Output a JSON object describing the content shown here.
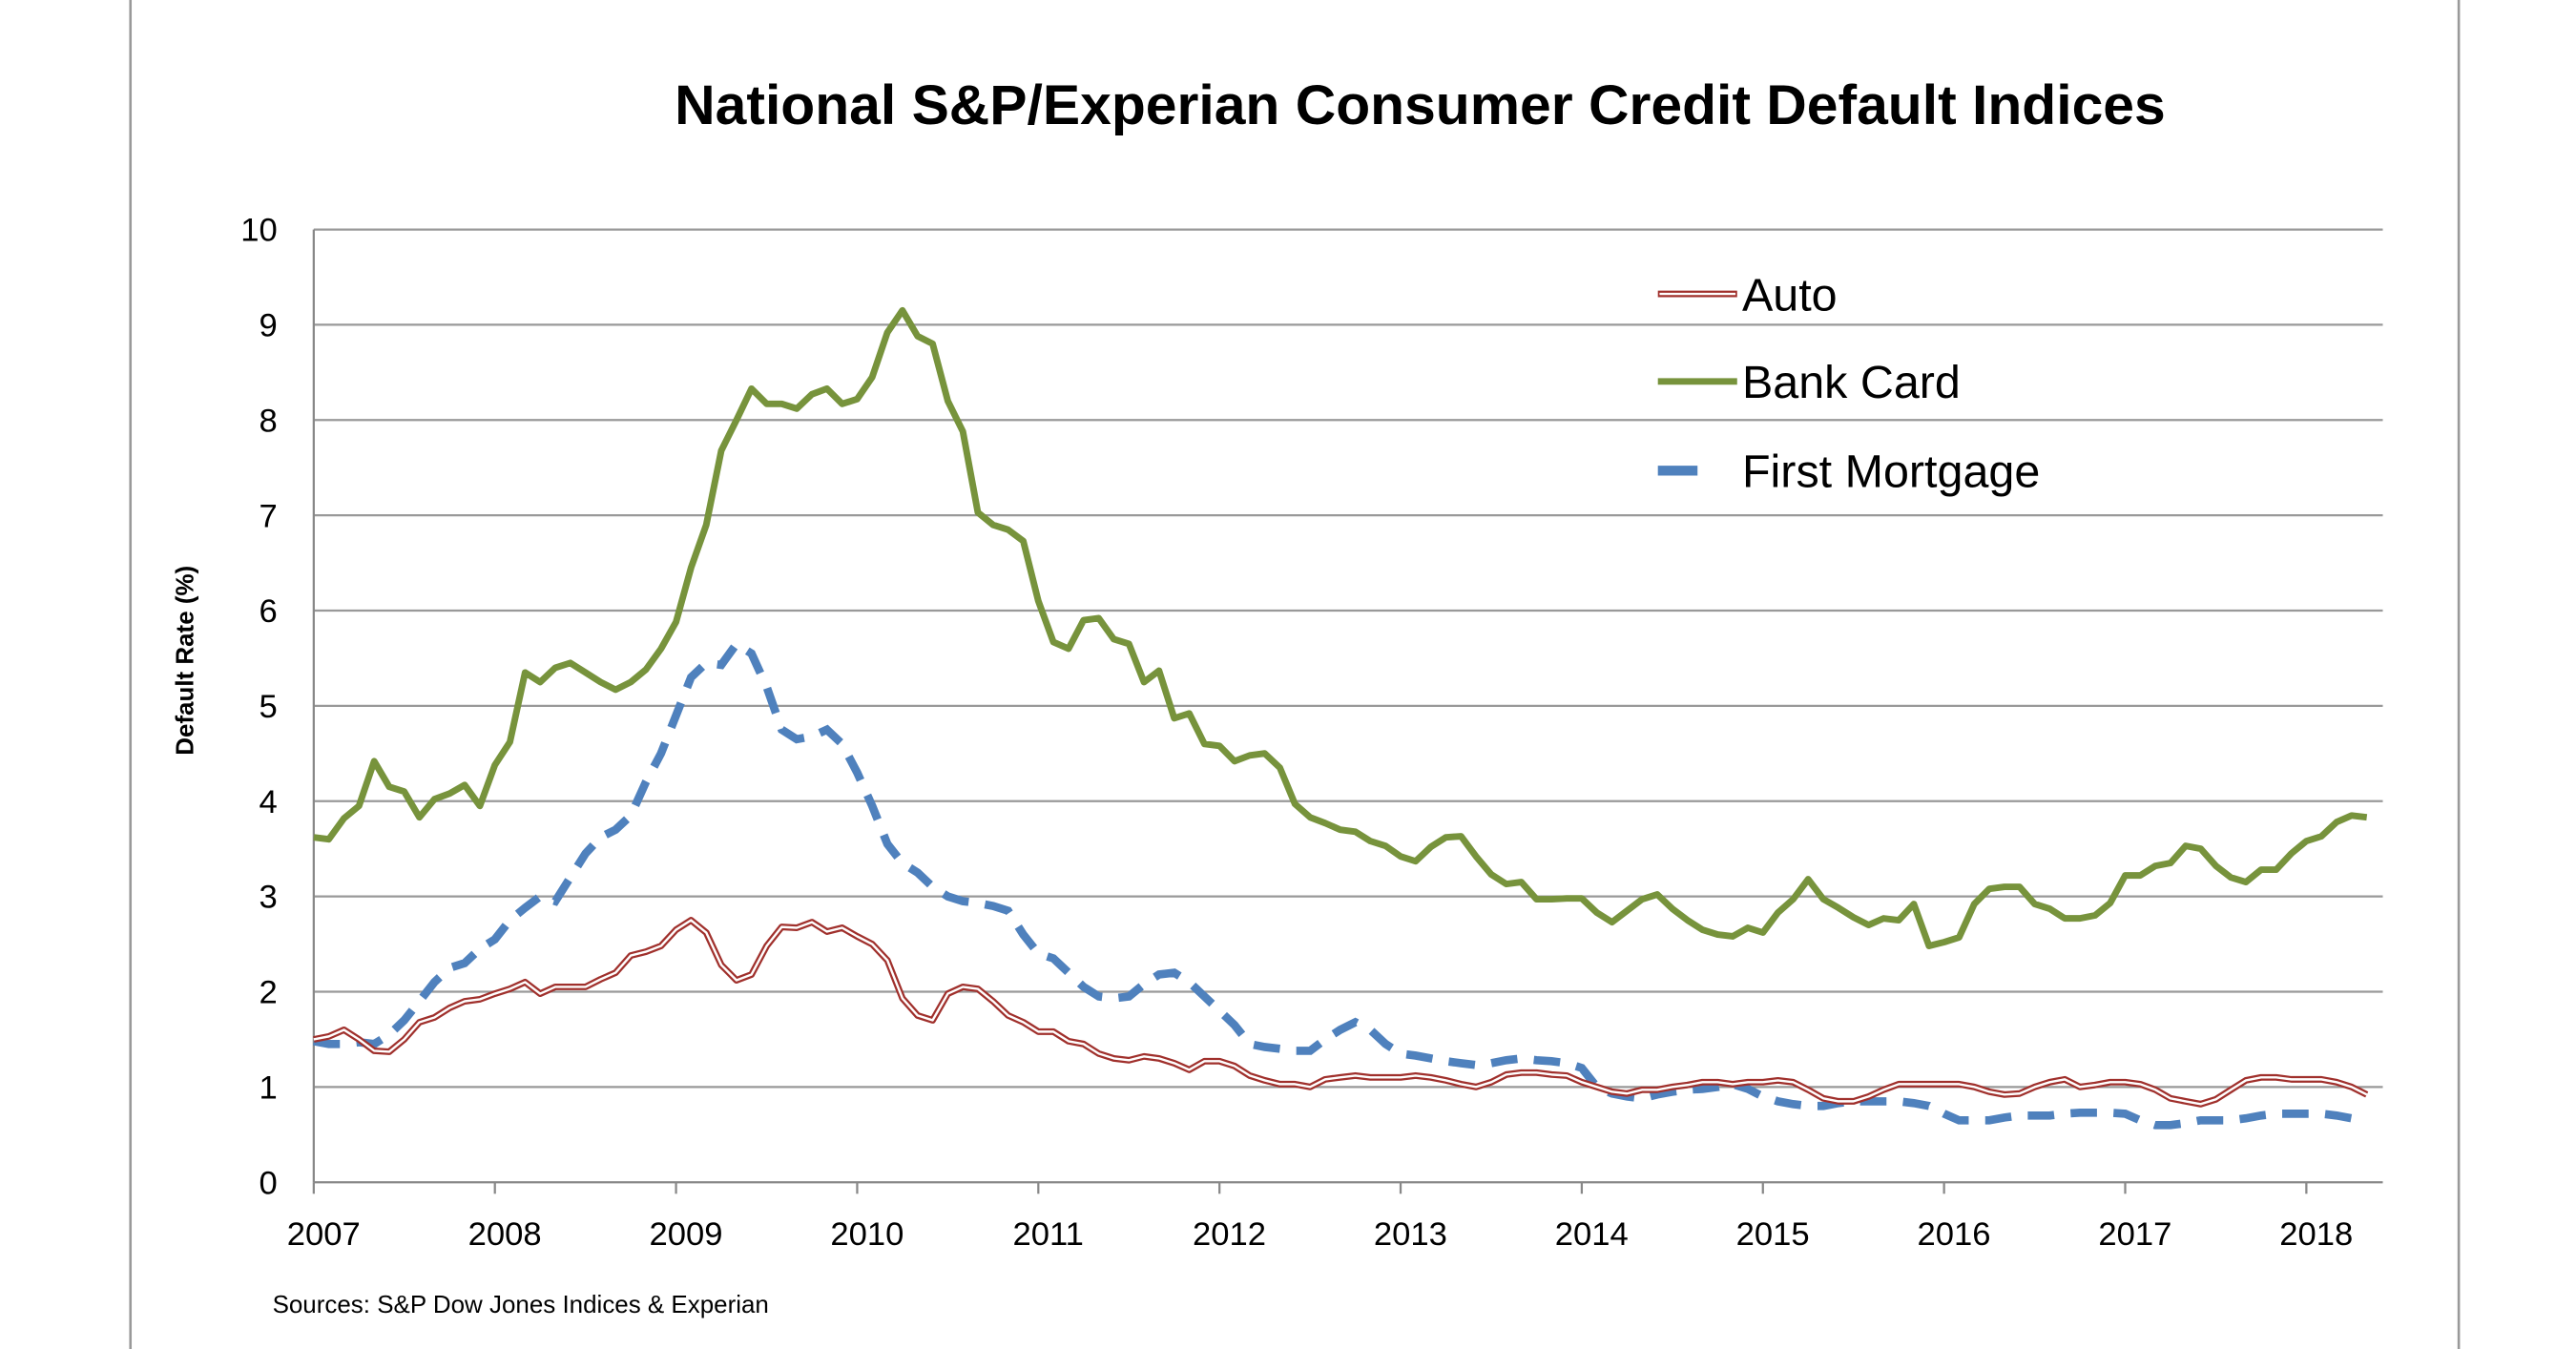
{
  "chart_data": {
    "type": "line",
    "title": "National S&P/Experian Consumer Credit Default Indices",
    "ylabel": "Default Rate (%)",
    "xlabel": "",
    "source": "Sources: S&P Dow Jones Indices & Experian",
    "ylim": [
      0,
      10
    ],
    "yticks": [
      "0",
      "1",
      "2",
      "3",
      "4",
      "5",
      "6",
      "7",
      "8",
      "9",
      "10"
    ],
    "xticks": [
      "2007",
      "2008",
      "2009",
      "2010",
      "2011",
      "2012",
      "2013",
      "2014",
      "2015",
      "2016",
      "2017",
      "2018"
    ],
    "x_frequency": "monthly",
    "x": [
      "2007-01",
      "2007-02",
      "2007-03",
      "2007-04",
      "2007-05",
      "2007-06",
      "2007-07",
      "2007-08",
      "2007-09",
      "2007-10",
      "2007-11",
      "2007-12",
      "2008-01",
      "2008-02",
      "2008-03",
      "2008-04",
      "2008-05",
      "2008-06",
      "2008-07",
      "2008-08",
      "2008-09",
      "2008-10",
      "2008-11",
      "2008-12",
      "2009-01",
      "2009-02",
      "2009-03",
      "2009-04",
      "2009-05",
      "2009-06",
      "2009-07",
      "2009-08",
      "2009-09",
      "2009-10",
      "2009-11",
      "2009-12",
      "2010-01",
      "2010-02",
      "2010-03",
      "2010-04",
      "2010-05",
      "2010-06",
      "2010-07",
      "2010-08",
      "2010-09",
      "2010-10",
      "2010-11",
      "2010-12",
      "2011-01",
      "2011-02",
      "2011-03",
      "2011-04",
      "2011-05",
      "2011-06",
      "2011-07",
      "2011-08",
      "2011-09",
      "2011-10",
      "2011-11",
      "2011-12",
      "2012-01",
      "2012-02",
      "2012-03",
      "2012-04",
      "2012-05",
      "2012-06",
      "2012-07",
      "2012-08",
      "2012-09",
      "2012-10",
      "2012-11",
      "2012-12",
      "2013-01",
      "2013-02",
      "2013-03",
      "2013-04",
      "2013-05",
      "2013-06",
      "2013-07",
      "2013-08",
      "2013-09",
      "2013-10",
      "2013-11",
      "2013-12",
      "2014-01",
      "2014-02",
      "2014-03",
      "2014-04",
      "2014-05",
      "2014-06",
      "2014-07",
      "2014-08",
      "2014-09",
      "2014-10",
      "2014-11",
      "2014-12",
      "2015-01",
      "2015-02",
      "2015-03",
      "2015-04",
      "2015-05",
      "2015-06",
      "2015-07",
      "2015-08",
      "2015-09",
      "2015-10",
      "2015-11",
      "2015-12",
      "2016-01",
      "2016-02",
      "2016-03",
      "2016-04",
      "2016-05",
      "2016-06",
      "2016-07",
      "2016-08",
      "2016-09",
      "2016-10",
      "2016-11",
      "2016-12",
      "2017-01",
      "2017-02",
      "2017-03",
      "2017-04",
      "2017-05",
      "2017-06",
      "2017-07",
      "2017-08",
      "2017-09",
      "2017-10",
      "2017-11",
      "2017-12",
      "2018-01",
      "2018-02",
      "2018-03",
      "2018-04",
      "2018-05"
    ],
    "grid": true,
    "legend_position": "top-right",
    "series": [
      {
        "name": "Auto",
        "color": "#a0302c",
        "style": "double-line",
        "values": [
          1.5,
          1.53,
          1.6,
          1.5,
          1.38,
          1.37,
          1.5,
          1.68,
          1.73,
          1.83,
          1.9,
          1.92,
          1.98,
          2.03,
          2.1,
          1.98,
          2.05,
          2.05,
          2.05,
          2.13,
          2.2,
          2.38,
          2.42,
          2.48,
          2.65,
          2.75,
          2.62,
          2.28,
          2.12,
          2.18,
          2.48,
          2.68,
          2.67,
          2.73,
          2.63,
          2.67,
          2.58,
          2.5,
          2.33,
          1.93,
          1.75,
          1.7,
          1.98,
          2.05,
          2.03,
          1.9,
          1.75,
          1.68,
          1.58,
          1.58,
          1.48,
          1.45,
          1.35,
          1.3,
          1.28,
          1.32,
          1.3,
          1.25,
          1.18,
          1.27,
          1.27,
          1.22,
          1.12,
          1.07,
          1.03,
          1.03,
          1.0,
          1.08,
          1.1,
          1.12,
          1.1,
          1.1,
          1.1,
          1.12,
          1.1,
          1.07,
          1.03,
          1.0,
          1.05,
          1.13,
          1.15,
          1.15,
          1.13,
          1.12,
          1.05,
          1.0,
          0.95,
          0.93,
          0.97,
          0.97,
          1.0,
          1.02,
          1.05,
          1.05,
          1.03,
          1.05,
          1.05,
          1.07,
          1.05,
          0.97,
          0.88,
          0.85,
          0.85,
          0.9,
          0.97,
          1.03,
          1.03,
          1.03,
          1.03,
          1.03,
          1.0,
          0.95,
          0.92,
          0.93,
          1.0,
          1.05,
          1.08,
          1.0,
          1.02,
          1.05,
          1.05,
          1.03,
          0.97,
          0.88,
          0.85,
          0.82,
          0.87,
          0.97,
          1.07,
          1.1,
          1.1,
          1.08,
          1.08,
          1.08,
          1.05,
          1.0,
          0.92
        ]
      },
      {
        "name": "Bank Card",
        "color": "#77933c",
        "style": "solid",
        "values": [
          3.62,
          3.6,
          3.82,
          3.95,
          4.42,
          4.15,
          4.1,
          3.83,
          4.02,
          4.08,
          4.17,
          3.95,
          4.38,
          4.62,
          5.35,
          5.25,
          5.4,
          5.45,
          5.35,
          5.25,
          5.17,
          5.25,
          5.38,
          5.6,
          5.88,
          6.45,
          6.9,
          7.68,
          8.0,
          8.33,
          8.17,
          8.17,
          8.12,
          8.27,
          8.33,
          8.17,
          8.22,
          8.45,
          8.92,
          9.15,
          8.88,
          8.8,
          8.2,
          7.88,
          7.03,
          6.9,
          6.85,
          6.73,
          6.1,
          5.67,
          5.6,
          5.9,
          5.92,
          5.7,
          5.65,
          5.25,
          5.37,
          4.87,
          4.92,
          4.6,
          4.58,
          4.42,
          4.48,
          4.5,
          4.35,
          3.97,
          3.83,
          3.77,
          3.7,
          3.68,
          3.58,
          3.53,
          3.42,
          3.37,
          3.52,
          3.62,
          3.63,
          3.42,
          3.23,
          3.13,
          3.15,
          2.97,
          2.97,
          2.98,
          2.98,
          2.83,
          2.73,
          2.85,
          2.97,
          3.02,
          2.87,
          2.75,
          2.65,
          2.6,
          2.58,
          2.67,
          2.62,
          2.83,
          2.97,
          3.18,
          2.97,
          2.88,
          2.78,
          2.7,
          2.77,
          2.75,
          2.92,
          2.48,
          2.52,
          2.57,
          2.92,
          3.08,
          3.1,
          3.1,
          2.92,
          2.87,
          2.77,
          2.77,
          2.8,
          2.93,
          3.22,
          3.22,
          3.32,
          3.35,
          3.53,
          3.5,
          3.32,
          3.2,
          3.15,
          3.28,
          3.28,
          3.45,
          3.58,
          3.63,
          3.78,
          3.85,
          3.83
        ]
      },
      {
        "name": "First Mortgage",
        "color": "#4f81bd",
        "style": "dashed",
        "values": [
          1.48,
          1.45,
          1.45,
          1.47,
          1.45,
          1.55,
          1.7,
          1.9,
          2.1,
          2.25,
          2.3,
          2.45,
          2.55,
          2.75,
          2.88,
          3.0,
          2.95,
          3.2,
          3.45,
          3.62,
          3.7,
          3.85,
          4.2,
          4.5,
          4.9,
          5.3,
          5.45,
          5.43,
          5.65,
          5.55,
          5.2,
          4.75,
          4.65,
          4.68,
          4.75,
          4.6,
          4.3,
          3.95,
          3.55,
          3.35,
          3.25,
          3.1,
          3.0,
          2.95,
          2.93,
          2.9,
          2.85,
          2.6,
          2.4,
          2.35,
          2.2,
          2.05,
          1.95,
          1.93,
          1.95,
          2.08,
          2.18,
          2.2,
          2.1,
          1.95,
          1.8,
          1.65,
          1.45,
          1.42,
          1.4,
          1.38,
          1.38,
          1.5,
          1.6,
          1.68,
          1.6,
          1.45,
          1.35,
          1.33,
          1.3,
          1.27,
          1.25,
          1.23,
          1.25,
          1.28,
          1.3,
          1.28,
          1.27,
          1.25,
          1.2,
          1.0,
          0.93,
          0.9,
          0.88,
          0.92,
          0.95,
          0.97,
          0.98,
          1.0,
          1.03,
          0.98,
          0.9,
          0.85,
          0.82,
          0.8,
          0.8,
          0.83,
          0.85,
          0.85,
          0.85,
          0.85,
          0.83,
          0.8,
          0.72,
          0.65,
          0.65,
          0.65,
          0.68,
          0.7,
          0.7,
          0.7,
          0.72,
          0.73,
          0.73,
          0.73,
          0.72,
          0.65,
          0.6,
          0.6,
          0.62,
          0.65,
          0.65,
          0.65,
          0.67,
          0.7,
          0.72,
          0.72,
          0.72,
          0.72,
          0.7,
          0.67,
          0.65
        ]
      }
    ]
  }
}
